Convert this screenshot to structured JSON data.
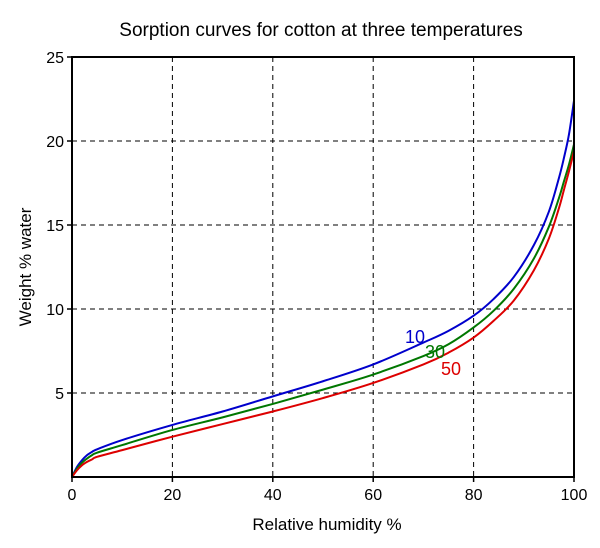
{
  "chart_data": {
    "type": "line",
    "title": "Sorption curves for cotton at three temperatures",
    "xlabel": "Relative humidity %",
    "ylabel": "Weight % water",
    "xlim": [
      0,
      100
    ],
    "ylim": [
      0,
      25
    ],
    "xticks": [
      0,
      20,
      40,
      60,
      80,
      100
    ],
    "yticks": [
      5,
      10,
      15,
      20,
      25
    ],
    "grid": true,
    "series": [
      {
        "name": "10",
        "color": "#0000cc",
        "x": [
          0,
          1,
          2,
          3,
          4,
          5,
          10,
          20,
          30,
          40,
          50,
          60,
          70,
          75,
          80,
          84,
          88,
          92,
          95,
          97,
          98,
          99,
          100
        ],
        "y": [
          0,
          0.6,
          1.0,
          1.3,
          1.5,
          1.65,
          2.2,
          3.1,
          3.9,
          4.8,
          5.7,
          6.7,
          8.0,
          8.7,
          9.6,
          10.6,
          11.9,
          13.8,
          15.8,
          17.8,
          19.0,
          20.4,
          22.4
        ]
      },
      {
        "name": "30",
        "color": "#007700",
        "x": [
          0,
          1,
          2,
          3,
          4,
          5,
          10,
          20,
          30,
          40,
          50,
          60,
          70,
          75,
          80,
          84,
          88,
          92,
          95,
          97,
          98,
          99,
          100
        ],
        "y": [
          0,
          0.5,
          0.85,
          1.1,
          1.3,
          1.45,
          1.9,
          2.8,
          3.55,
          4.35,
          5.2,
          6.1,
          7.2,
          7.9,
          8.9,
          9.9,
          11.2,
          13.0,
          14.9,
          16.6,
          17.6,
          18.6,
          19.8
        ]
      },
      {
        "name": "50",
        "color": "#dd0000",
        "x": [
          0,
          1,
          2,
          3,
          4,
          5,
          10,
          20,
          30,
          40,
          50,
          60,
          70,
          75,
          80,
          84,
          88,
          92,
          95,
          97,
          98,
          99,
          100
        ],
        "y": [
          0,
          0.4,
          0.7,
          0.9,
          1.05,
          1.2,
          1.6,
          2.4,
          3.15,
          3.9,
          4.7,
          5.6,
          6.7,
          7.4,
          8.3,
          9.3,
          10.5,
          12.3,
          14.2,
          16.0,
          17.1,
          18.2,
          19.4
        ]
      }
    ]
  }
}
